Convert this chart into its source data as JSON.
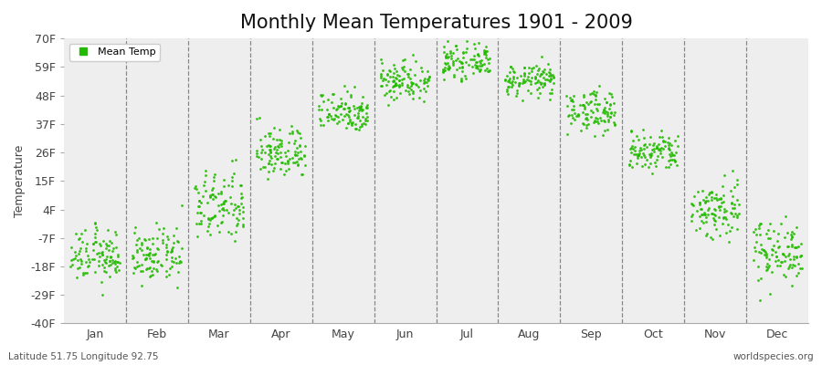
{
  "title": "Monthly Mean Temperatures 1901 - 2009",
  "ylabel": "Temperature",
  "subtitle_left": "Latitude 51.75 Longitude 92.75",
  "subtitle_right": "worldspecies.org",
  "legend_label": "Mean Temp",
  "ytick_labels": [
    "70F",
    "59F",
    "48F",
    "37F",
    "26F",
    "15F",
    "4F",
    "-7F",
    "-18F",
    "-29F",
    "-40F"
  ],
  "ytick_values": [
    70,
    59,
    48,
    37,
    26,
    15,
    4,
    -7,
    -18,
    -29,
    -40
  ],
  "ylim": [
    -40,
    70
  ],
  "months": [
    "Jan",
    "Feb",
    "Mar",
    "Apr",
    "May",
    "Jun",
    "Jul",
    "Aug",
    "Sep",
    "Oct",
    "Nov",
    "Dec"
  ],
  "dot_color": "#22bb00",
  "bg_color": "#ffffff",
  "plot_bg_color": "#eeeeee",
  "title_fontsize": 15,
  "axis_label_fontsize": 9,
  "tick_fontsize": 9,
  "monthly_centers": [
    -14,
    -14,
    5,
    26,
    42,
    54,
    61,
    54,
    42,
    26,
    4,
    -12
  ],
  "monthly_spreads": [
    5,
    5,
    7,
    5,
    4,
    4,
    3,
    3,
    4,
    4,
    6,
    6
  ],
  "n_years": 109
}
